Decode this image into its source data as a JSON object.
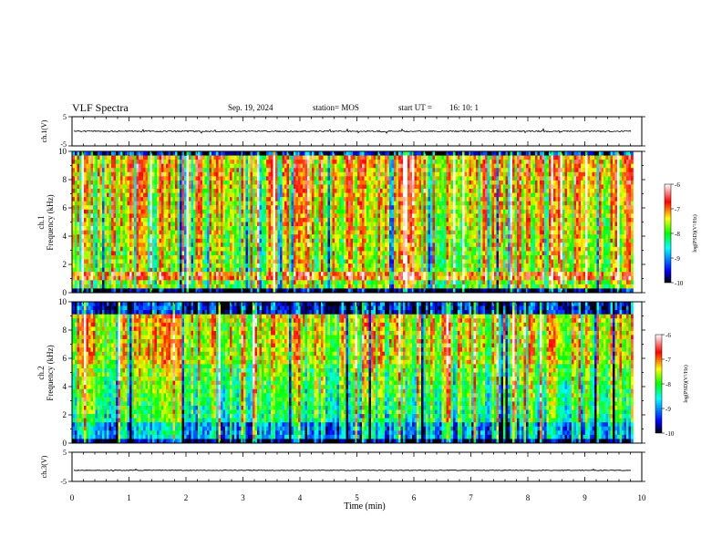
{
  "header": {
    "title": "VLF Spectra",
    "date": "Sep. 19, 2024",
    "station": "station= MOS",
    "start_label": "start  UT =",
    "start_time": "16: 10: 1"
  },
  "chart_data": [
    {
      "type": "line",
      "panel": "ch1-waveform",
      "ylabel": "ch.1(V)",
      "ylim": [
        -5,
        5
      ],
      "yticks": [
        "5",
        "-5"
      ],
      "xlim": [
        0,
        10
      ],
      "baseline_value": 0
    },
    {
      "type": "heatmap",
      "panel": "ch1-spectrogram",
      "ylabel_line1": "ch.1",
      "ylabel_line2": "Frequency  (kHz)",
      "ylim": [
        0,
        10
      ],
      "yticks": [
        "0",
        "2",
        "4",
        "6",
        "8",
        "10"
      ],
      "xlim": [
        0,
        10
      ],
      "data_end_min": 9.82,
      "colorbar": {
        "label": "log(PSD)(V²/Hz)",
        "range": [
          -10,
          -6
        ],
        "ticks": [
          "-6",
          "-7",
          "-8",
          "-9",
          "-10"
        ]
      }
    },
    {
      "type": "heatmap",
      "panel": "ch2-spectrogram",
      "ylabel_line1": "ch.2",
      "ylabel_line2": "Frequency  (kHz)",
      "ylim": [
        0,
        10
      ],
      "yticks": [
        "0",
        "2",
        "4",
        "6",
        "8",
        "10"
      ],
      "xlim": [
        0,
        10
      ],
      "data_end_min": 9.82,
      "colorbar": {
        "label": "log(PSD)(V²/Hz)",
        "range": [
          -10,
          -6
        ],
        "ticks": [
          "-6",
          "-7",
          "-8",
          "-9",
          "-10"
        ]
      }
    },
    {
      "type": "line",
      "panel": "ch3-waveform",
      "ylabel": "ch.3(V)",
      "ylim": [
        -5,
        5
      ],
      "yticks": [
        "5",
        "-5"
      ],
      "xlim": [
        0,
        10
      ],
      "baseline_value": -1.2
    }
  ],
  "xaxis": {
    "label": "Time  (min)",
    "ticks": [
      "0",
      "1",
      "2",
      "3",
      "4",
      "5",
      "6",
      "7",
      "8",
      "9",
      "10"
    ]
  },
  "colors": {
    "axis": "#000000",
    "colormap": [
      "#000000",
      "#0000ff",
      "#00ffff",
      "#00ff00",
      "#ffff00",
      "#ff0000",
      "#ffffff"
    ]
  }
}
